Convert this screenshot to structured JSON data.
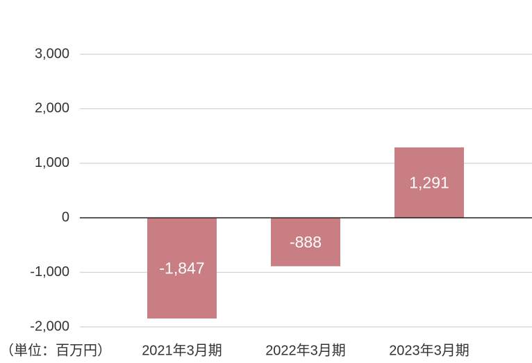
{
  "chart_data": {
    "type": "bar",
    "unit_label": "（単位：百万円）",
    "categories": [
      "2021年3月期",
      "2022年3月期",
      "2023年3月期"
    ],
    "values": [
      -1847,
      -888,
      1291
    ],
    "value_labels": [
      "-1,847",
      "-888",
      "1,291"
    ],
    "color": "#c97e83",
    "ylim": [
      -2000,
      3000
    ],
    "yticks": [
      {
        "value": -2000,
        "label": "-2,000"
      },
      {
        "value": -1000,
        "label": "-1,000"
      },
      0,
      {
        "value": 1000,
        "label": "1,000"
      },
      {
        "value": 2000,
        "label": "2,000"
      },
      {
        "value": 3000,
        "label": "3,000"
      }
    ],
    "grid": true
  }
}
